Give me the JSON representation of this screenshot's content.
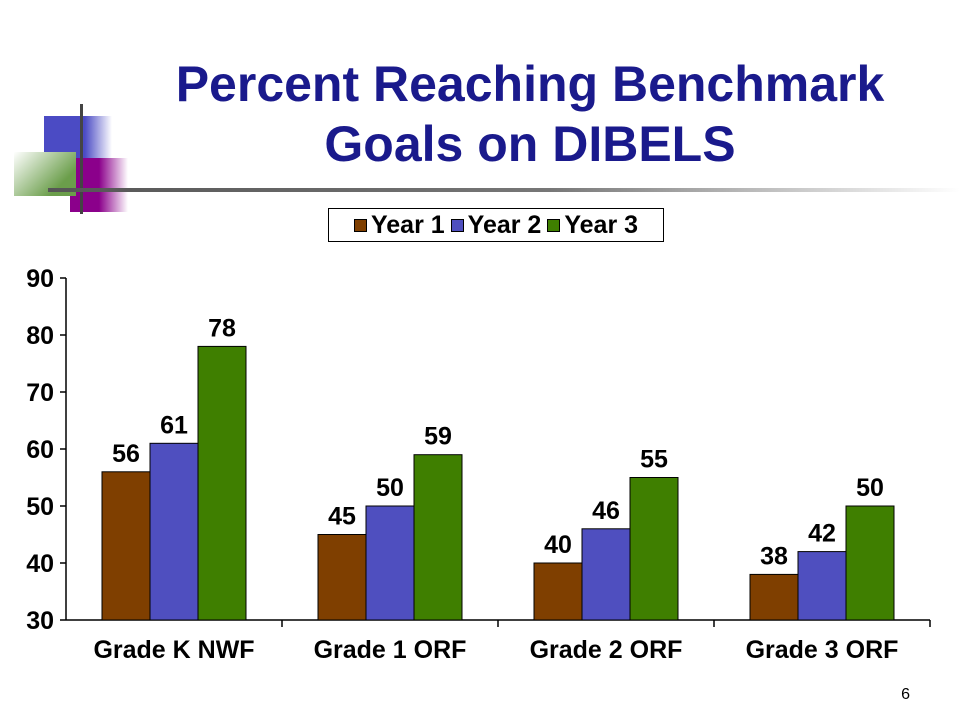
{
  "slide": {
    "title_line1": "Percent Reaching Benchmark",
    "title_line2": "Goals on DIBELS",
    "page_number": "6"
  },
  "colors": {
    "title": "#1a1a8c",
    "year1": "#7f3f00",
    "year2": "#4f4fbf",
    "year3": "#3f7f00",
    "deco_blue": "#4b4bc4",
    "deco_purple": "#8b008b",
    "deco_green": "#6b9e4b"
  },
  "chart_data": {
    "type": "bar",
    "title": "",
    "xlabel": "",
    "ylabel": "",
    "categories": [
      "Grade K NWF",
      "Grade 1 ORF",
      "Grade 2 ORF",
      "Grade 3 ORF"
    ],
    "series": [
      {
        "name": "Year 1",
        "color": "#7f3f00",
        "values": [
          56,
          45,
          40,
          38
        ]
      },
      {
        "name": "Year 2",
        "color": "#4f4fbf",
        "values": [
          61,
          50,
          46,
          42
        ]
      },
      {
        "name": "Year 3",
        "color": "#3f7f00",
        "values": [
          78,
          59,
          55,
          50
        ]
      }
    ],
    "ylim": [
      30,
      90
    ],
    "yticks": [
      "30",
      "40",
      "50",
      "60",
      "70",
      "80",
      "90"
    ],
    "data_labels": true,
    "grid": false,
    "legend_position": "top-center"
  }
}
